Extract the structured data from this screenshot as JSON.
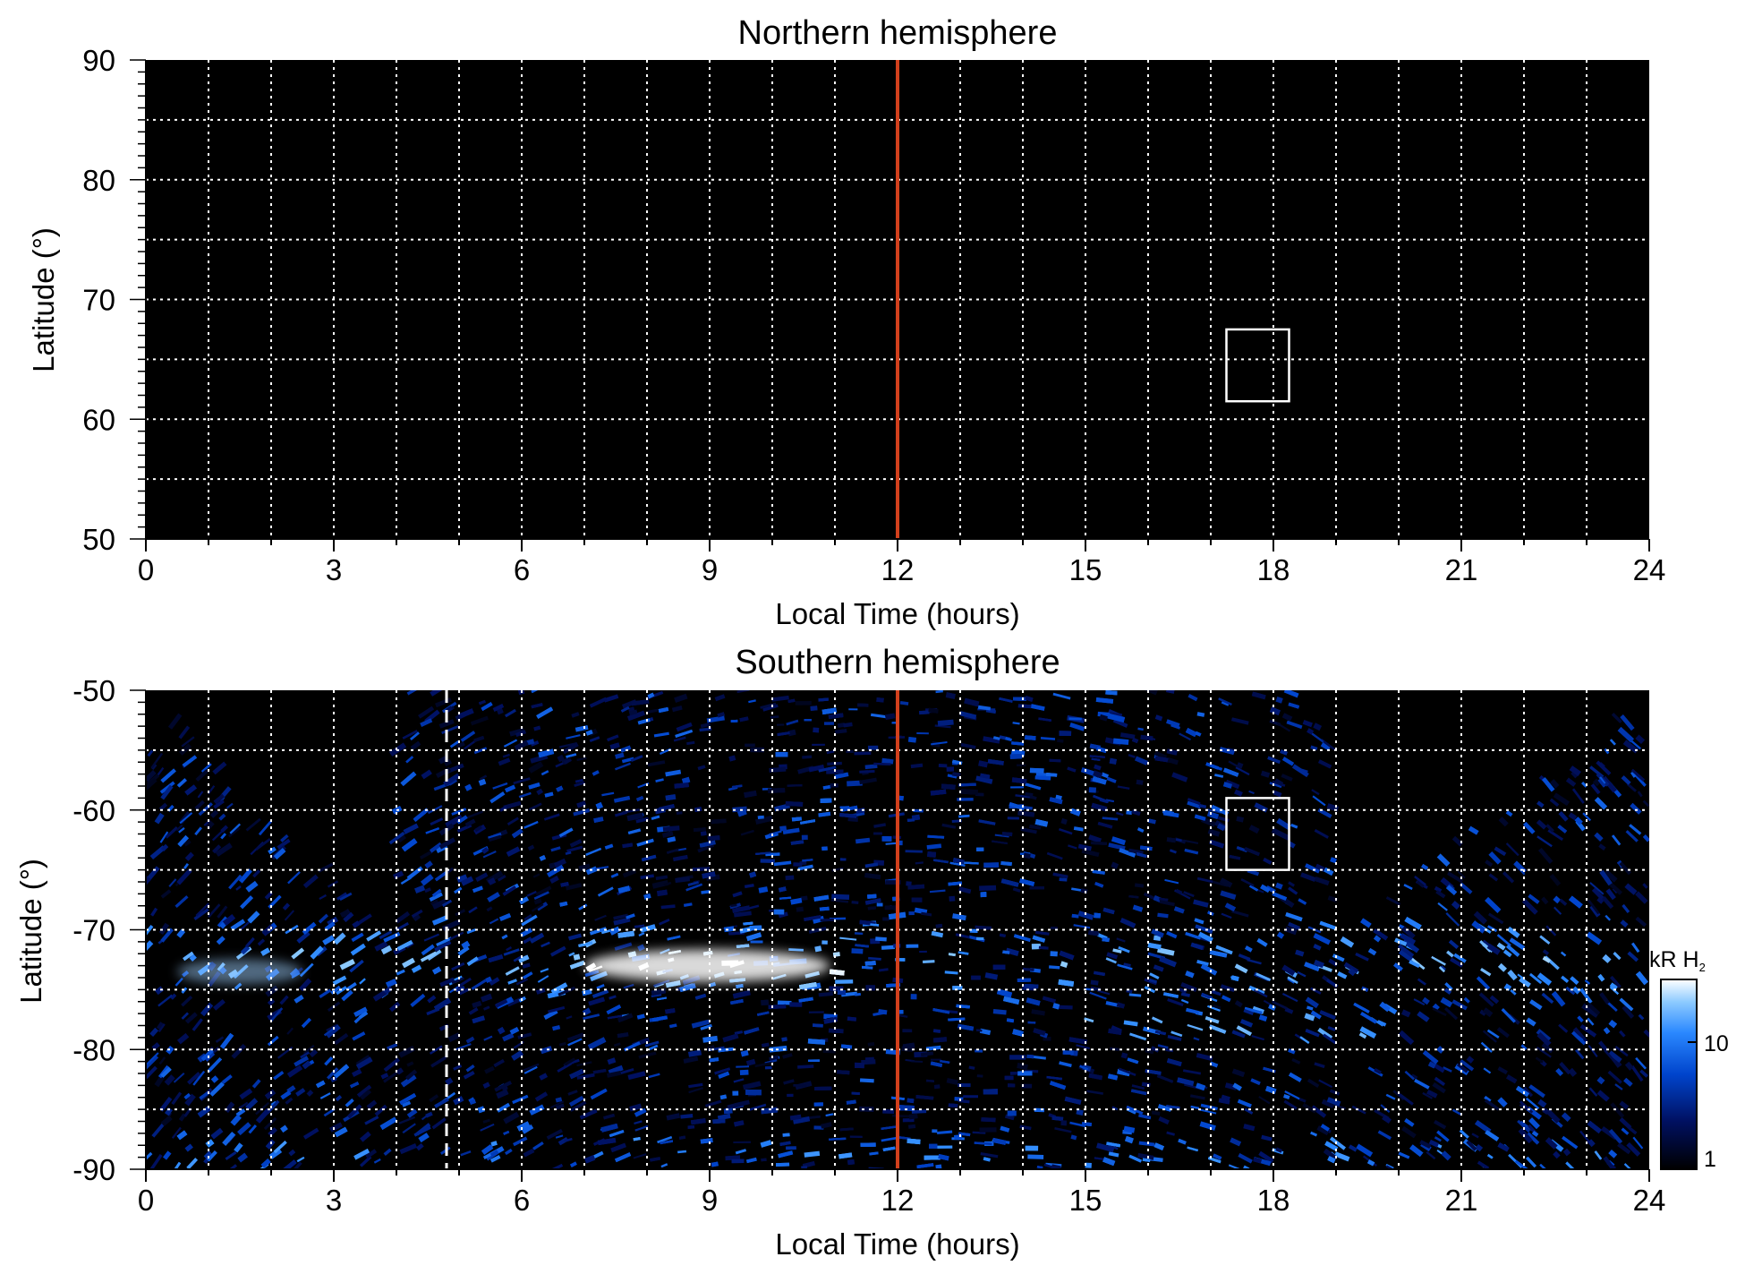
{
  "chart_data": [
    {
      "type": "heatmap",
      "title": "Northern hemisphere",
      "xlabel": "Local Time (hours)",
      "ylabel": "Latitude (°)",
      "xlim": [
        0,
        24
      ],
      "ylim": [
        50,
        90
      ],
      "xticks": [
        "0",
        "3",
        "6",
        "9",
        "12",
        "15",
        "18",
        "21",
        "24"
      ],
      "yticks": [
        "50",
        "60",
        "70",
        "80",
        "90"
      ],
      "grid": true,
      "marker_line_x": 12,
      "marker_line_color": "#d2401c",
      "box": {
        "x0": 17.25,
        "x1": 18.25,
        "y0": 61.5,
        "y1": 67.5
      },
      "emission": "none"
    },
    {
      "type": "heatmap",
      "title": "Southern hemisphere",
      "xlabel": "Local Time (hours)",
      "ylabel": "Latitude (°)",
      "xlim": [
        0,
        24
      ],
      "ylim": [
        -90,
        -50
      ],
      "xticks": [
        "0",
        "3",
        "6",
        "9",
        "12",
        "15",
        "18",
        "21",
        "24"
      ],
      "yticks": [
        "-50",
        "-60",
        "-70",
        "-80",
        "-90"
      ],
      "grid": true,
      "marker_line_x": 12,
      "marker_line_color": "#d2401c",
      "dashed_line_x": 4.8,
      "box": {
        "x0": 17.25,
        "x1": 18.25,
        "y0": -65,
        "y1": -59
      },
      "auroral_oval_lat": -72.5,
      "bright_region": {
        "x0": 7,
        "x1": 11.5,
        "lat": -73
      },
      "colorbar": {
        "label": "kR H",
        "label_sub": "2",
        "ticks": [
          "1",
          "10"
        ],
        "scale": "log",
        "range": [
          1,
          20
        ],
        "colors": [
          "#000000",
          "#001060",
          "#0044cc",
          "#2a88ff",
          "#8ccaff",
          "#ffffff"
        ]
      }
    }
  ]
}
